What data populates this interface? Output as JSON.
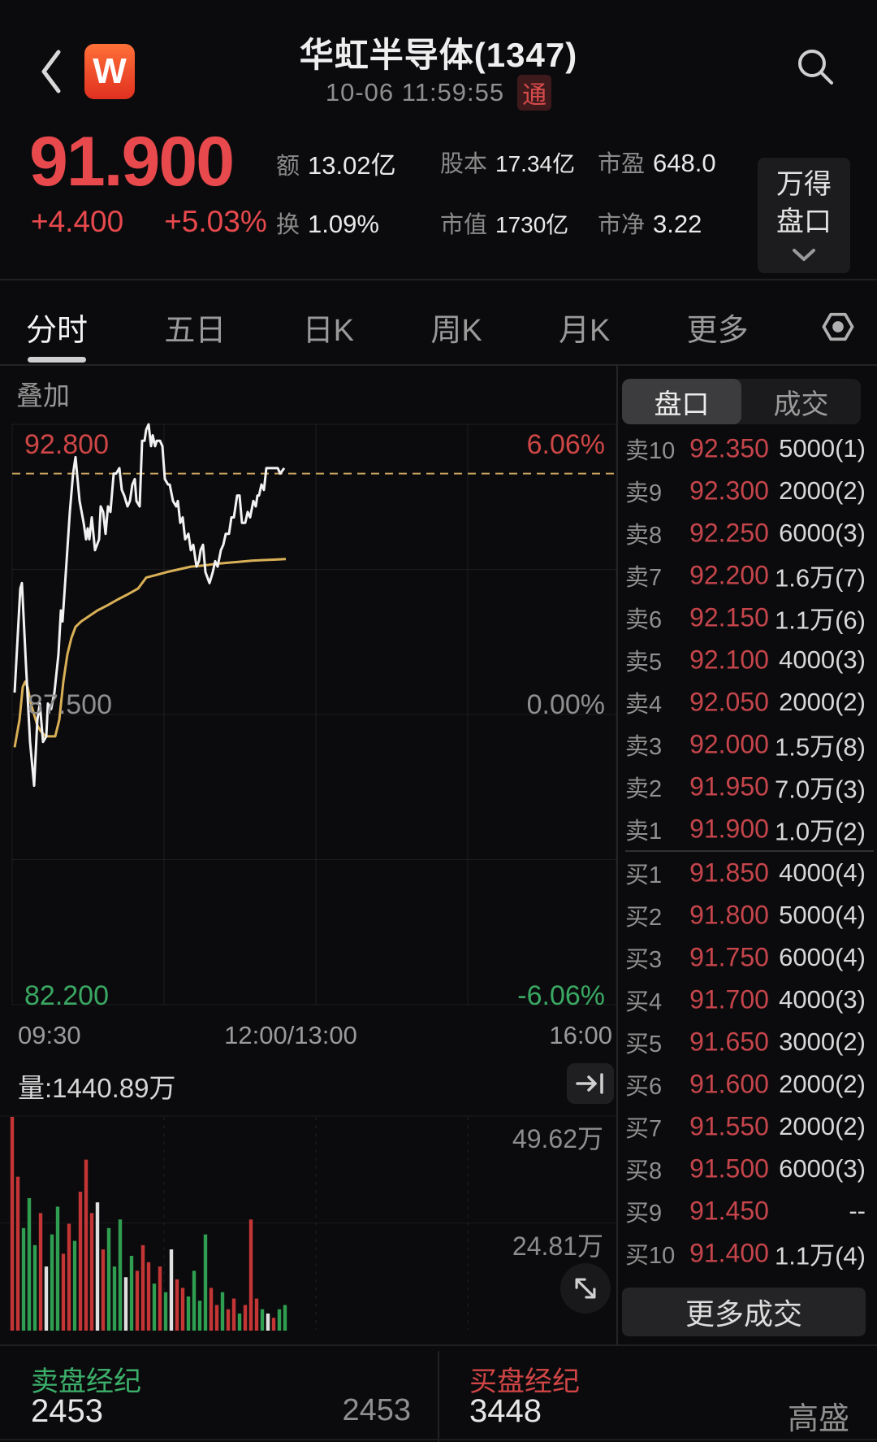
{
  "header": {
    "title": "华虹半导体(1347)",
    "timestamp": "10-06 11:59:55",
    "badge": "通"
  },
  "quote": {
    "price": "91.900",
    "change": "+4.400",
    "change_pct": "+5.03%",
    "stats": [
      {
        "label": "额",
        "value": "13.02亿"
      },
      {
        "label": "股本",
        "value": "17.34亿",
        "small": true
      },
      {
        "label": "市盈",
        "value": "648.0"
      },
      {
        "label": "换",
        "value": "1.09%"
      },
      {
        "label": "市值",
        "value": "1730亿",
        "small": true
      },
      {
        "label": "市净",
        "value": "3.22"
      }
    ],
    "panel_button": {
      "line1": "万得",
      "line2": "盘口"
    }
  },
  "tabs": {
    "items": [
      "分时",
      "五日",
      "日K",
      "周K",
      "月K",
      "更多"
    ],
    "active": "分时"
  },
  "chart": {
    "overlay_label": "叠加",
    "y_high": "92.800",
    "y_high_pct": "6.06%",
    "y_mid": "87.500",
    "y_mid_pct": "0.00%",
    "y_low": "82.200",
    "y_low_pct": "-6.06%",
    "time_left": "09:30",
    "time_mid": "12:00/13:00",
    "time_right": "16:00",
    "volume_label": "量:1440.89万",
    "volume_top_label": "49.62万",
    "volume_mid_label": "24.81万"
  },
  "chart_data": {
    "type": "line",
    "title": "分时 (intraday) 华虹半导体 1347",
    "ylim": [
      82.2,
      92.8
    ],
    "prev_close": 87.5,
    "last": 91.9,
    "day_high": 92.8,
    "day_low": 86.2,
    "x_axis": {
      "labels": [
        "09:30",
        "12:00/13:00",
        "16:00"
      ],
      "plot_x_range": [
        15,
        763
      ]
    },
    "legend_position": "none",
    "grid": true,
    "series": [
      {
        "name": "price",
        "color": "#f2f2f2",
        "points": [
          [
            18,
            87.9
          ],
          [
            25,
            89.8
          ],
          [
            27,
            89.9
          ],
          [
            32,
            88.4
          ],
          [
            37,
            87.0
          ],
          [
            42,
            86.2
          ],
          [
            46,
            87.4
          ],
          [
            49,
            87.7
          ],
          [
            53,
            87.0
          ],
          [
            57,
            87.1
          ],
          [
            59,
            87.7
          ],
          [
            63,
            87.6
          ],
          [
            67,
            87.9
          ],
          [
            72,
            88.6
          ],
          [
            75,
            89.4
          ],
          [
            77,
            89.2
          ],
          [
            82,
            90.3
          ],
          [
            86,
            91.2
          ],
          [
            90,
            91.9
          ],
          [
            93,
            92.2
          ],
          [
            98,
            91.4
          ],
          [
            103,
            91.0
          ],
          [
            106,
            90.7
          ],
          [
            108,
            90.9
          ],
          [
            110,
            90.7
          ],
          [
            113,
            91.1
          ],
          [
            117,
            90.5
          ],
          [
            122,
            90.7
          ],
          [
            124,
            91.3
          ],
          [
            127,
            91.2
          ],
          [
            130,
            90.8
          ],
          [
            133,
            91.3
          ],
          [
            136,
            91.2
          ],
          [
            140,
            91.9
          ],
          [
            143,
            91.9
          ],
          [
            147,
            92.0
          ],
          [
            150,
            91.6
          ],
          [
            153,
            91.5
          ],
          [
            157,
            91.3
          ],
          [
            160,
            91.4
          ],
          [
            163,
            91.7
          ],
          [
            166,
            91.8
          ],
          [
            168,
            91.4
          ],
          [
            172,
            91.3
          ],
          [
            175,
            92.5
          ],
          [
            178,
            92.5
          ],
          [
            180,
            92.7
          ],
          [
            183,
            92.8
          ],
          [
            186,
            92.4
          ],
          [
            188,
            92.6
          ],
          [
            191,
            92.4
          ],
          [
            193,
            92.5
          ],
          [
            197,
            92.5
          ],
          [
            200,
            92.4
          ],
          [
            203,
            91.8
          ],
          [
            207,
            91.7
          ],
          [
            209,
            91.7
          ],
          [
            213,
            91.4
          ],
          [
            217,
            91.3
          ],
          [
            219,
            91.4
          ],
          [
            222,
            91.0
          ],
          [
            225,
            91.1
          ],
          [
            228,
            90.7
          ],
          [
            232,
            90.8
          ],
          [
            235,
            90.5
          ],
          [
            238,
            90.6
          ],
          [
            242,
            90.2
          ],
          [
            245,
            90.3
          ],
          [
            247,
            90.5
          ],
          [
            250,
            90.6
          ],
          [
            253,
            90.1
          ],
          [
            258,
            89.9
          ],
          [
            262,
            90.1
          ],
          [
            265,
            90.3
          ],
          [
            268,
            90.2
          ],
          [
            272,
            90.5
          ],
          [
            275,
            90.6
          ],
          [
            278,
            90.8
          ],
          [
            282,
            90.8
          ],
          [
            285,
            91.1
          ],
          [
            288,
            91.1
          ],
          [
            292,
            91.5
          ],
          [
            295,
            91.5
          ],
          [
            298,
            91.0
          ],
          [
            302,
            91.0
          ],
          [
            305,
            91.2
          ],
          [
            308,
            91.1
          ],
          [
            312,
            91.4
          ],
          [
            315,
            91.3
          ],
          [
            317,
            91.5
          ],
          [
            319,
            91.5
          ],
          [
            322,
            91.7
          ],
          [
            325,
            91.6
          ],
          [
            328,
            92.0
          ],
          [
            333,
            92.0
          ],
          [
            338,
            92.0
          ],
          [
            342,
            92.0
          ],
          [
            345,
            91.9
          ],
          [
            350,
            92.0
          ]
        ]
      },
      {
        "name": "average",
        "color": "#d9b057",
        "points": [
          [
            18,
            86.9
          ],
          [
            24,
            87.4
          ],
          [
            28,
            88.0
          ],
          [
            31,
            88.1
          ],
          [
            34,
            88.0
          ],
          [
            38,
            87.7
          ],
          [
            42,
            87.5
          ],
          [
            46,
            87.3
          ],
          [
            50,
            87.2
          ],
          [
            56,
            87.1
          ],
          [
            62,
            87.1
          ],
          [
            68,
            87.1
          ],
          [
            73,
            87.4
          ],
          [
            78,
            88.1
          ],
          [
            83,
            88.6
          ],
          [
            88,
            88.9
          ],
          [
            93,
            89.1
          ],
          [
            100,
            89.2
          ],
          [
            110,
            89.3
          ],
          [
            120,
            89.4
          ],
          [
            133,
            89.5
          ],
          [
            145,
            89.6
          ],
          [
            158,
            89.7
          ],
          [
            170,
            89.8
          ],
          [
            180,
            90.0
          ],
          [
            193,
            90.05
          ],
          [
            205,
            90.1
          ],
          [
            220,
            90.15
          ],
          [
            235,
            90.2
          ],
          [
            250,
            90.22
          ],
          [
            265,
            90.25
          ],
          [
            280,
            90.27
          ],
          [
            295,
            90.29
          ],
          [
            310,
            90.31
          ],
          [
            325,
            90.32
          ],
          [
            340,
            90.33
          ],
          [
            352,
            90.34
          ]
        ]
      }
    ],
    "volume": {
      "unit": "万",
      "total_label": "量:1440.89万",
      "gridline_values": [
        49.62,
        24.81
      ],
      "colors": {
        "r": "#c43535",
        "g": "#2f9e50",
        "w": "#e0e0e0"
      },
      "bars": [
        {
          "x": 15,
          "h": 1.0,
          "c": "r"
        },
        {
          "x": 22,
          "h": 0.72,
          "c": "r"
        },
        {
          "x": 29,
          "h": 0.48,
          "c": "g"
        },
        {
          "x": 36,
          "h": 0.62,
          "c": "g"
        },
        {
          "x": 43,
          "h": 0.4,
          "c": "g"
        },
        {
          "x": 50,
          "h": 0.55,
          "c": "r"
        },
        {
          "x": 57,
          "h": 0.3,
          "c": "w"
        },
        {
          "x": 64,
          "h": 0.45,
          "c": "g"
        },
        {
          "x": 71,
          "h": 0.58,
          "c": "g"
        },
        {
          "x": 78,
          "h": 0.36,
          "c": "r"
        },
        {
          "x": 85,
          "h": 0.5,
          "c": "r"
        },
        {
          "x": 92,
          "h": 0.42,
          "c": "g"
        },
        {
          "x": 99,
          "h": 0.65,
          "c": "r"
        },
        {
          "x": 106,
          "h": 0.8,
          "c": "r"
        },
        {
          "x": 113,
          "h": 0.55,
          "c": "r"
        },
        {
          "x": 120,
          "h": 0.6,
          "c": "w"
        },
        {
          "x": 127,
          "h": 0.38,
          "c": "r"
        },
        {
          "x": 134,
          "h": 0.48,
          "c": "g"
        },
        {
          "x": 141,
          "h": 0.3,
          "c": "g"
        },
        {
          "x": 148,
          "h": 0.52,
          "c": "g"
        },
        {
          "x": 155,
          "h": 0.25,
          "c": "w"
        },
        {
          "x": 162,
          "h": 0.35,
          "c": "g"
        },
        {
          "x": 169,
          "h": 0.28,
          "c": "r"
        },
        {
          "x": 176,
          "h": 0.4,
          "c": "r"
        },
        {
          "x": 183,
          "h": 0.32,
          "c": "r"
        },
        {
          "x": 190,
          "h": 0.22,
          "c": "g"
        },
        {
          "x": 197,
          "h": 0.3,
          "c": "r"
        },
        {
          "x": 204,
          "h": 0.18,
          "c": "g"
        },
        {
          "x": 211,
          "h": 0.38,
          "c": "w"
        },
        {
          "x": 218,
          "h": 0.24,
          "c": "r"
        },
        {
          "x": 225,
          "h": 0.2,
          "c": "r"
        },
        {
          "x": 232,
          "h": 0.16,
          "c": "g"
        },
        {
          "x": 239,
          "h": 0.28,
          "c": "g"
        },
        {
          "x": 246,
          "h": 0.14,
          "c": "g"
        },
        {
          "x": 253,
          "h": 0.45,
          "c": "g"
        },
        {
          "x": 260,
          "h": 0.2,
          "c": "r"
        },
        {
          "x": 267,
          "h": 0.12,
          "c": "r"
        },
        {
          "x": 274,
          "h": 0.18,
          "c": "g"
        },
        {
          "x": 281,
          "h": 0.1,
          "c": "r"
        },
        {
          "x": 288,
          "h": 0.15,
          "c": "r"
        },
        {
          "x": 295,
          "h": 0.08,
          "c": "g"
        },
        {
          "x": 302,
          "h": 0.12,
          "c": "r"
        },
        {
          "x": 309,
          "h": 0.52,
          "c": "r"
        },
        {
          "x": 316,
          "h": 0.15,
          "c": "r"
        },
        {
          "x": 323,
          "h": 0.1,
          "c": "g"
        },
        {
          "x": 330,
          "h": 0.08,
          "c": "w"
        },
        {
          "x": 337,
          "h": 0.06,
          "c": "r"
        },
        {
          "x": 344,
          "h": 0.1,
          "c": "g"
        },
        {
          "x": 351,
          "h": 0.12,
          "c": "g"
        }
      ]
    }
  },
  "orderbook": {
    "tab_book": "盘口",
    "tab_trades": "成交",
    "active_tab": "盘口",
    "asks": [
      [
        "卖10",
        "92.350",
        "5000(1)"
      ],
      [
        "卖9",
        "92.300",
        "2000(2)"
      ],
      [
        "卖8",
        "92.250",
        "6000(3)"
      ],
      [
        "卖7",
        "92.200",
        "1.6万(7)"
      ],
      [
        "卖6",
        "92.150",
        "1.1万(6)"
      ],
      [
        "卖5",
        "92.100",
        "4000(3)"
      ],
      [
        "卖4",
        "92.050",
        "2000(2)"
      ],
      [
        "卖3",
        "92.000",
        "1.5万(8)"
      ],
      [
        "卖2",
        "91.950",
        "7.0万(3)"
      ],
      [
        "卖1",
        "91.900",
        "1.0万(2)"
      ]
    ],
    "bids": [
      [
        "买1",
        "91.850",
        "4000(4)"
      ],
      [
        "买2",
        "91.800",
        "5000(4)"
      ],
      [
        "买3",
        "91.750",
        "6000(4)"
      ],
      [
        "买4",
        "91.700",
        "4000(3)"
      ],
      [
        "买5",
        "91.650",
        "3000(2)"
      ],
      [
        "买6",
        "91.600",
        "2000(2)"
      ],
      [
        "买7",
        "91.550",
        "2000(2)"
      ],
      [
        "买8",
        "91.500",
        "6000(3)"
      ],
      [
        "买9",
        "91.450",
        "--"
      ],
      [
        "买10",
        "91.400",
        "1.1万(4)"
      ]
    ],
    "more_button": "更多成交"
  },
  "brokers": {
    "sell_title": "卖盘经纪",
    "sell_main": "2453",
    "sell_sub": "2453",
    "buy_title": "买盘经纪",
    "buy_main": "3448",
    "buy_sub": "高盛"
  },
  "colors": {
    "up_red": "#e8494d",
    "down_green": "#3aa863",
    "price_line": "#f2f2f2",
    "avg_line": "#d9b057",
    "dashed_last_price": "#c8a45e",
    "background": "#0b0b0d",
    "logo_orange": "#f05a2d"
  }
}
